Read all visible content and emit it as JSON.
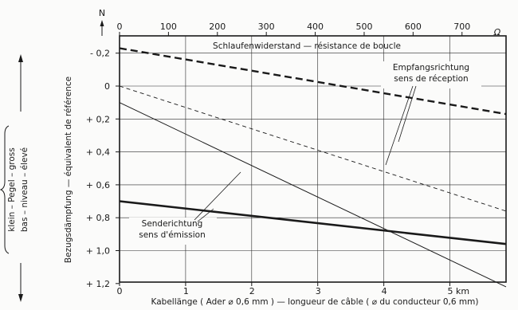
{
  "chart_data": {
    "type": "line",
    "bottom_axis": {
      "label": "Kabellänge ( Ader ⌀ 0,6 mm ) — longueur de câble ( ⌀ du conducteur 0,6 mm)",
      "range": [
        0,
        5.85
      ],
      "ticks": [
        0,
        1,
        2,
        3,
        4,
        5
      ],
      "tick_labels": [
        "0",
        "1",
        "2",
        "3",
        "4",
        "5 km"
      ]
    },
    "top_axis": {
      "label": "Schlaufenwiderstand — résistance de boucle",
      "unit": "Ω",
      "range": [
        0,
        790
      ],
      "ticks": [
        0,
        100,
        200,
        300,
        400,
        500,
        600,
        700
      ],
      "tick_labels": [
        "0",
        "100",
        "200",
        "300",
        "400",
        "500",
        "600",
        "700"
      ]
    },
    "y_axis": {
      "label": "Bezugsdämpfung — équivalent de référence",
      "unit": "N",
      "range": [
        -0.25,
        1.2
      ],
      "inverted": true,
      "ticks": [
        -0.2,
        0,
        0.2,
        0.4,
        0.6,
        0.8,
        1.0,
        1.2
      ],
      "tick_labels": [
        "- 0,2",
        "0",
        "+ 0,2",
        "+ 0,4",
        "+ 0,6",
        "+ 0,8",
        "+ 1,0",
        "+ 1,2"
      ]
    },
    "side_labels": [
      "klein – Pegel – gross",
      "bas – niveau – élevé"
    ],
    "series": [
      {
        "name": "Empfangsrichtung sens de réception",
        "style": "thick-dashed",
        "x": [
          0,
          5.85
        ],
        "y": [
          -0.23,
          0.17
        ]
      },
      {
        "style": "thin-dashed",
        "x": [
          0,
          5.85
        ],
        "y": [
          0.0,
          0.76
        ]
      },
      {
        "name": "Senderichtung sens d'émission",
        "style": "thick-solid",
        "x": [
          0,
          5.85
        ],
        "y": [
          0.7,
          0.96
        ]
      },
      {
        "style": "thin-solid",
        "x": [
          0,
          5.85
        ],
        "y": [
          0.1,
          1.22
        ]
      }
    ],
    "annotations": [
      {
        "lines": [
          "Empfangsrichtung",
          "sens de réception"
        ]
      },
      {
        "lines": [
          "Senderichtung",
          "sens d'émission"
        ]
      }
    ],
    "grid": true,
    "colors": {
      "line": "#1a1a1a",
      "grid": "#2a2a2a",
      "background": "#fbfbfa"
    }
  }
}
